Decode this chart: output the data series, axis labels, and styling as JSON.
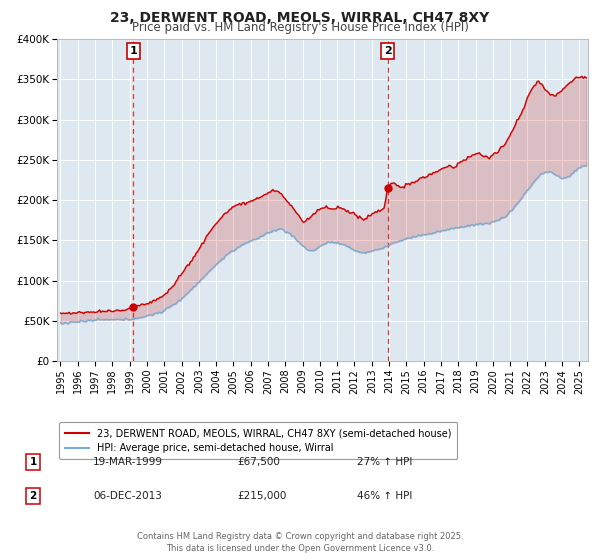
{
  "title": "23, DERWENT ROAD, MEOLS, WIRRAL, CH47 8XY",
  "subtitle": "Price paid vs. HM Land Registry's House Price Index (HPI)",
  "title_fontsize": 10,
  "subtitle_fontsize": 8.5,
  "background_color": "#ffffff",
  "plot_background_color": "#dde8f0",
  "grid_color": "#ffffff",
  "red_color": "#cc0000",
  "blue_color": "#7aadd4",
  "sale1_date": 1999.21,
  "sale1_price": 67500,
  "sale1_label": "1",
  "sale2_date": 2013.92,
  "sale2_price": 215000,
  "sale2_label": "2",
  "ylim": [
    0,
    400000
  ],
  "xlim": [
    1994.8,
    2025.5
  ],
  "yticks": [
    0,
    50000,
    100000,
    150000,
    200000,
    250000,
    300000,
    350000,
    400000
  ],
  "ytick_labels": [
    "£0",
    "£50K",
    "£100K",
    "£150K",
    "£200K",
    "£250K",
    "£300K",
    "£350K",
    "£400K"
  ],
  "xticks": [
    1995,
    1996,
    1997,
    1998,
    1999,
    2000,
    2001,
    2002,
    2003,
    2004,
    2005,
    2006,
    2007,
    2008,
    2009,
    2010,
    2011,
    2012,
    2013,
    2014,
    2015,
    2016,
    2017,
    2018,
    2019,
    2020,
    2021,
    2022,
    2023,
    2024,
    2025
  ],
  "legend_label_red": "23, DERWENT ROAD, MEOLS, WIRRAL, CH47 8XY (semi-detached house)",
  "legend_label_blue": "HPI: Average price, semi-detached house, Wirral",
  "note1_num": "1",
  "note1_date": "19-MAR-1999",
  "note1_price": "£67,500",
  "note1_hpi": "27% ↑ HPI",
  "note2_num": "2",
  "note2_date": "06-DEC-2013",
  "note2_price": "£215,000",
  "note2_hpi": "46% ↑ HPI",
  "footer": "Contains HM Land Registry data © Crown copyright and database right 2025.\nThis data is licensed under the Open Government Licence v3.0."
}
